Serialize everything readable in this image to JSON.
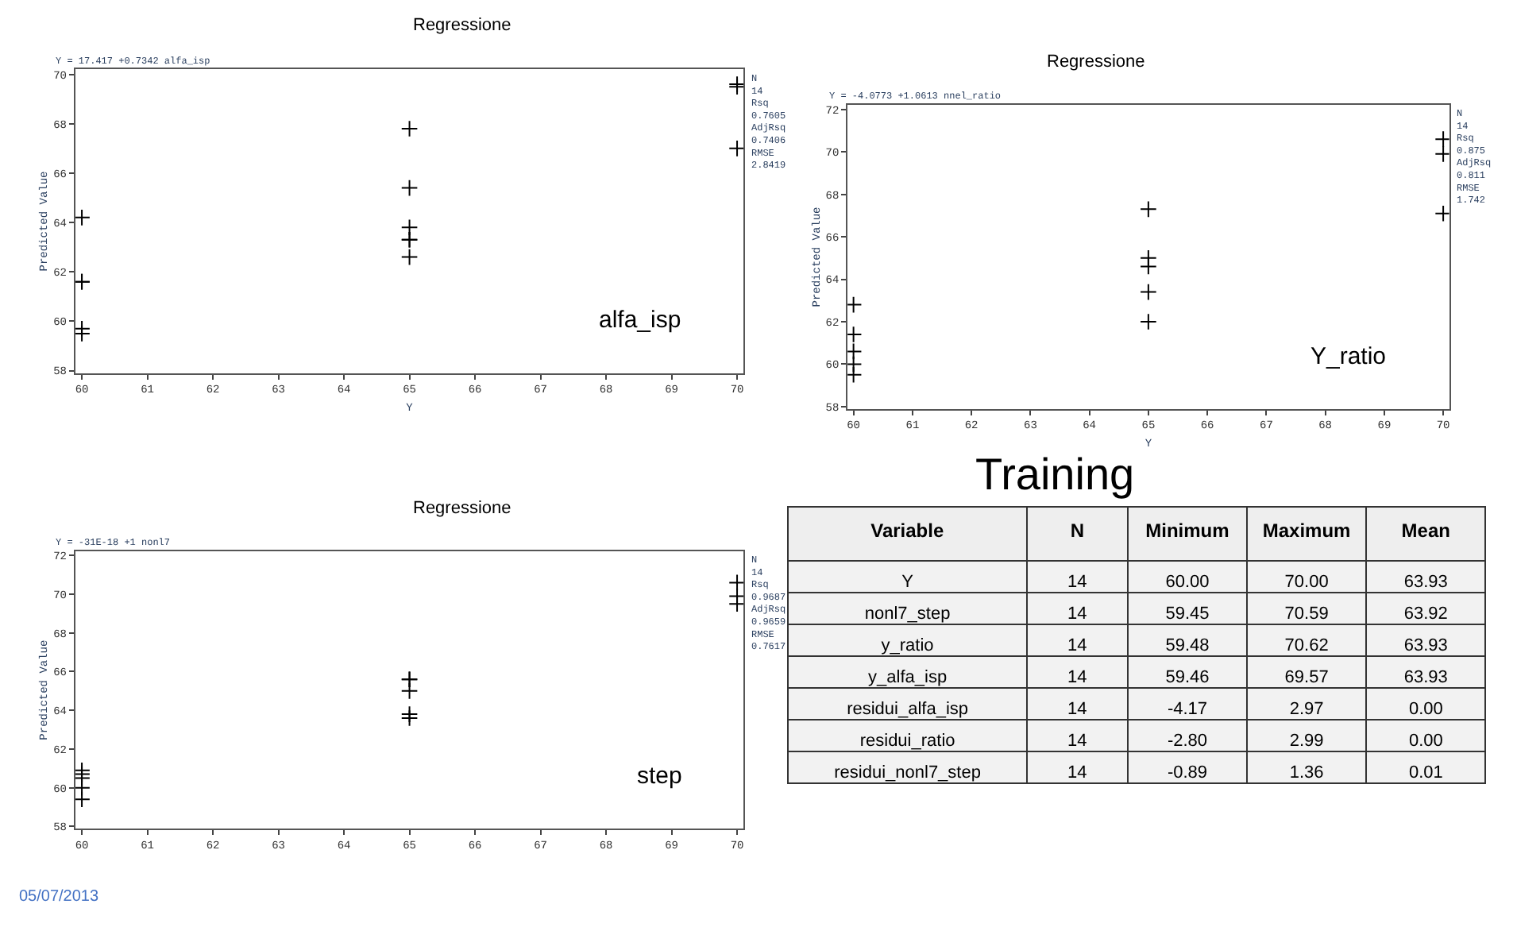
{
  "chart_data": [
    {
      "type": "scatter",
      "title": "Regressione",
      "xlabel": "Y",
      "ylabel": "Predicted Value",
      "marker": "cross",
      "x": [
        60,
        60,
        60,
        60,
        60,
        65,
        65,
        65,
        65,
        65,
        65,
        70,
        70,
        70
      ],
      "series": [
        {
          "color": "#000000",
          "values": [
            64.2,
            61.6,
            61.6,
            59.7,
            59.5,
            67.8,
            65.4,
            63.8,
            63.3,
            63.3,
            62.6,
            69.5,
            69.6,
            67.0
          ]
        }
      ],
      "xlim": [
        59.9,
        70.1
      ],
      "xticks": [
        60,
        61,
        62,
        63,
        64,
        65,
        66,
        67,
        68,
        69,
        70
      ],
      "ylim": [
        57.9,
        70.2
      ],
      "yticks": [
        58,
        60,
        62,
        64,
        66,
        68,
        70
      ],
      "annotations": [
        "Y = 17.417 +0.7342 alfa_isp",
        "N\n14\nRsq\n0.7605\nAdjRsq\n0.7406\nRMSE\n2.8419",
        "alfa_isp"
      ]
    },
    {
      "type": "scatter",
      "title": "Regressione",
      "xlabel": "Y",
      "ylabel": "Predicted Value",
      "marker": "cross",
      "x": [
        60,
        60,
        60,
        60,
        60,
        65,
        65,
        65,
        65,
        65,
        70,
        70,
        70
      ],
      "series": [
        {
          "color": "#000000",
          "values": [
            62.8,
            61.4,
            60.6,
            60.0,
            59.5,
            67.3,
            65.0,
            64.6,
            63.4,
            62.0,
            70.6,
            69.9,
            67.1
          ]
        }
      ],
      "xlim": [
        59.9,
        70.1
      ],
      "xticks": [
        60,
        61,
        62,
        63,
        64,
        65,
        66,
        67,
        68,
        69,
        70
      ],
      "ylim": [
        57.9,
        72.2
      ],
      "yticks": [
        58,
        60,
        62,
        64,
        66,
        68,
        70,
        72
      ],
      "annotations": [
        "Y = -4.0773 +1.0613 nnel_ratio",
        "N\n14\nRsq\n0.875\nAdjRsq\n0.811\nRMSE\n1.742",
        "Y_ratio"
      ]
    },
    {
      "type": "scatter",
      "title": "Regressione",
      "ylabel": "Predicted Value",
      "marker": "cross",
      "x": [
        60,
        60,
        60,
        60,
        60,
        65,
        65,
        65,
        65,
        65,
        70,
        70,
        70
      ],
      "series": [
        {
          "color": "#000000",
          "values": [
            60.9,
            60.7,
            60.5,
            60.0,
            59.4,
            65.6,
            65.6,
            65.0,
            63.8,
            63.6,
            70.6,
            69.9,
            69.5
          ]
        }
      ],
      "xlim": [
        59.9,
        70.1
      ],
      "xticks": [
        60,
        61,
        62,
        63,
        64,
        65,
        66,
        67,
        68,
        69,
        70
      ],
      "ylim": [
        57.9,
        72.2
      ],
      "yticks": [
        58,
        60,
        62,
        64,
        66,
        68,
        70,
        72
      ],
      "annotations": [
        "Y = -31E-18 +1 nonl7",
        "N\n14\nRsq\n0.9687\nAdjRsq\n0.9659\nRMSE\n0.7617",
        "step",
        "05/07/2013"
      ]
    },
    {
      "type": "other",
      "title": "Training",
      "categories": [
        "Variable",
        "N",
        "Minimum",
        "Maximum",
        "Mean"
      ],
      "annotations": [
        "Y",
        "14",
        "60.00",
        "70.00",
        "63.93",
        "nonl7_step",
        "14",
        "59.45",
        "70.59",
        "63.92",
        "y_ratio",
        "14",
        "59.48",
        "70.62",
        "63.93",
        "y_alfa_isp",
        "14",
        "59.46",
        "69.57",
        "63.93",
        "residui_alfa_isp",
        "14",
        "-4.17",
        "2.97",
        "0.00",
        "residui_ratio",
        "14",
        "-2.80",
        "2.99",
        "0.00",
        "residui_nonl7_step",
        "14",
        "-0.89",
        "1.36",
        "0.01"
      ]
    }
  ]
}
